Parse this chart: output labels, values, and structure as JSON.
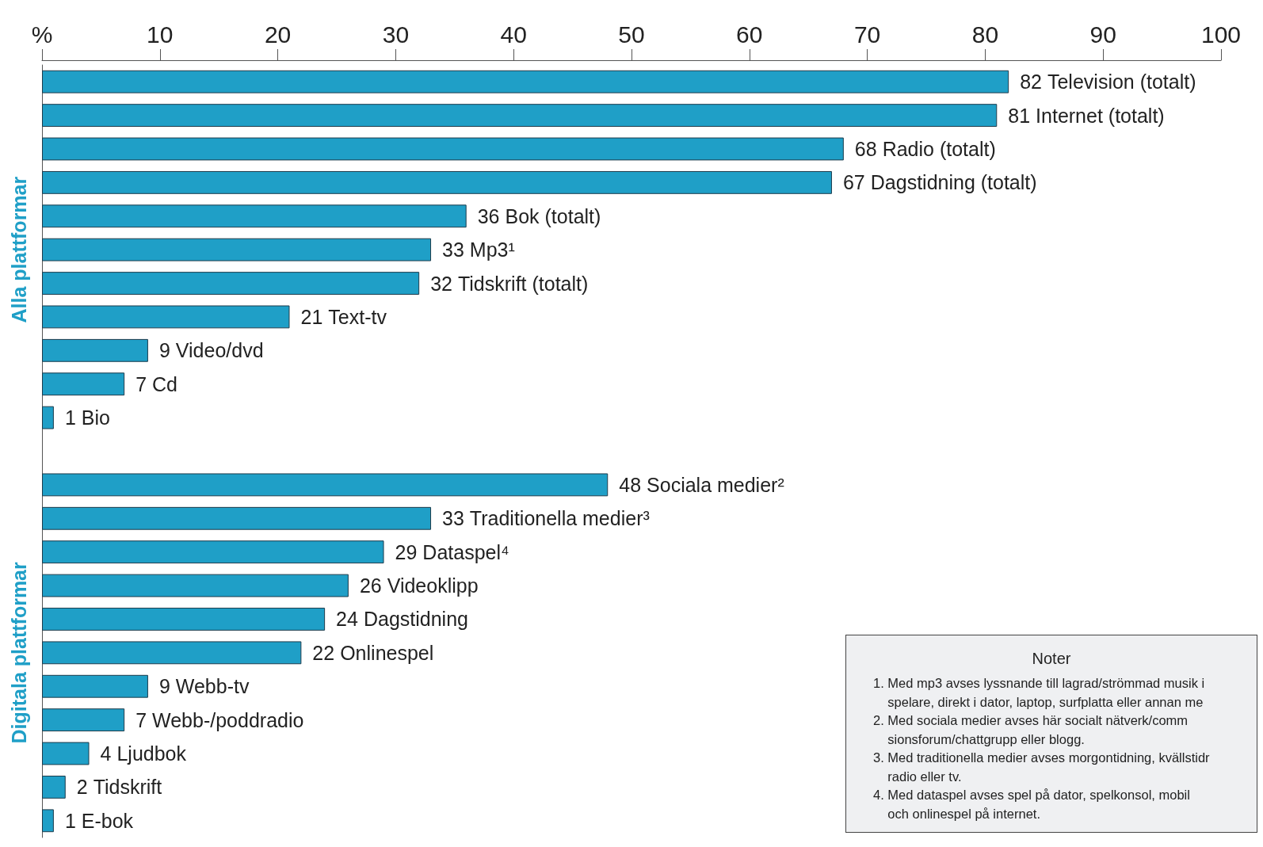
{
  "chart_data": {
    "type": "bar",
    "orientation": "horizontal",
    "categories": [
      "Television (totalt)",
      "Internet (totalt)",
      "Radio (totalt)",
      "Dagstidning (totalt)",
      "Bok (totalt)",
      "Mp3¹",
      "Tidskrift (totalt)",
      "Text-tv",
      "Video/dvd",
      "Cd",
      "Bio",
      null,
      "Sociala medier²",
      "Traditionella medier³",
      "Dataspel⁴",
      "Videoklipp",
      "Dagstidning",
      "Onlinespel",
      "Webb-tv",
      "Webb-/poddradio",
      "Ljudbok",
      "Tidskrift",
      "E-bok"
    ],
    "values": [
      82,
      81,
      68,
      67,
      36,
      33,
      32,
      21,
      9,
      7,
      1,
      null,
      48,
      33,
      29,
      26,
      24,
      22,
      9,
      7,
      4,
      2,
      1
    ],
    "color": "#1f9fc7",
    "data_labels": true,
    "xlim": [
      0,
      100
    ],
    "xticks": [
      {
        "value": 0,
        "label": "%"
      },
      10,
      20,
      30,
      40,
      50,
      60,
      70,
      80,
      90,
      100
    ],
    "tick_labels": "x",
    "annotations": [
      "Alla plattformar",
      "Digitala plattformar",
      "Noter",
      "1. Med mp3 avses lyssnande till lagrad/strömmad musik i\n    spelare, direkt i dator, laptop, surfplatta eller annan me",
      "2. Med sociala medier avses här socialt nätverk/comm\n    sionsforum/chattgrupp eller blogg.",
      "3. Med traditionella medier avses morgontidning, kvällstidr\n    radio eller tv.",
      "4. Med dataspel avses spel på dator, spelkonsol, mobil\n    och onlinespel på internet."
    ]
  }
}
